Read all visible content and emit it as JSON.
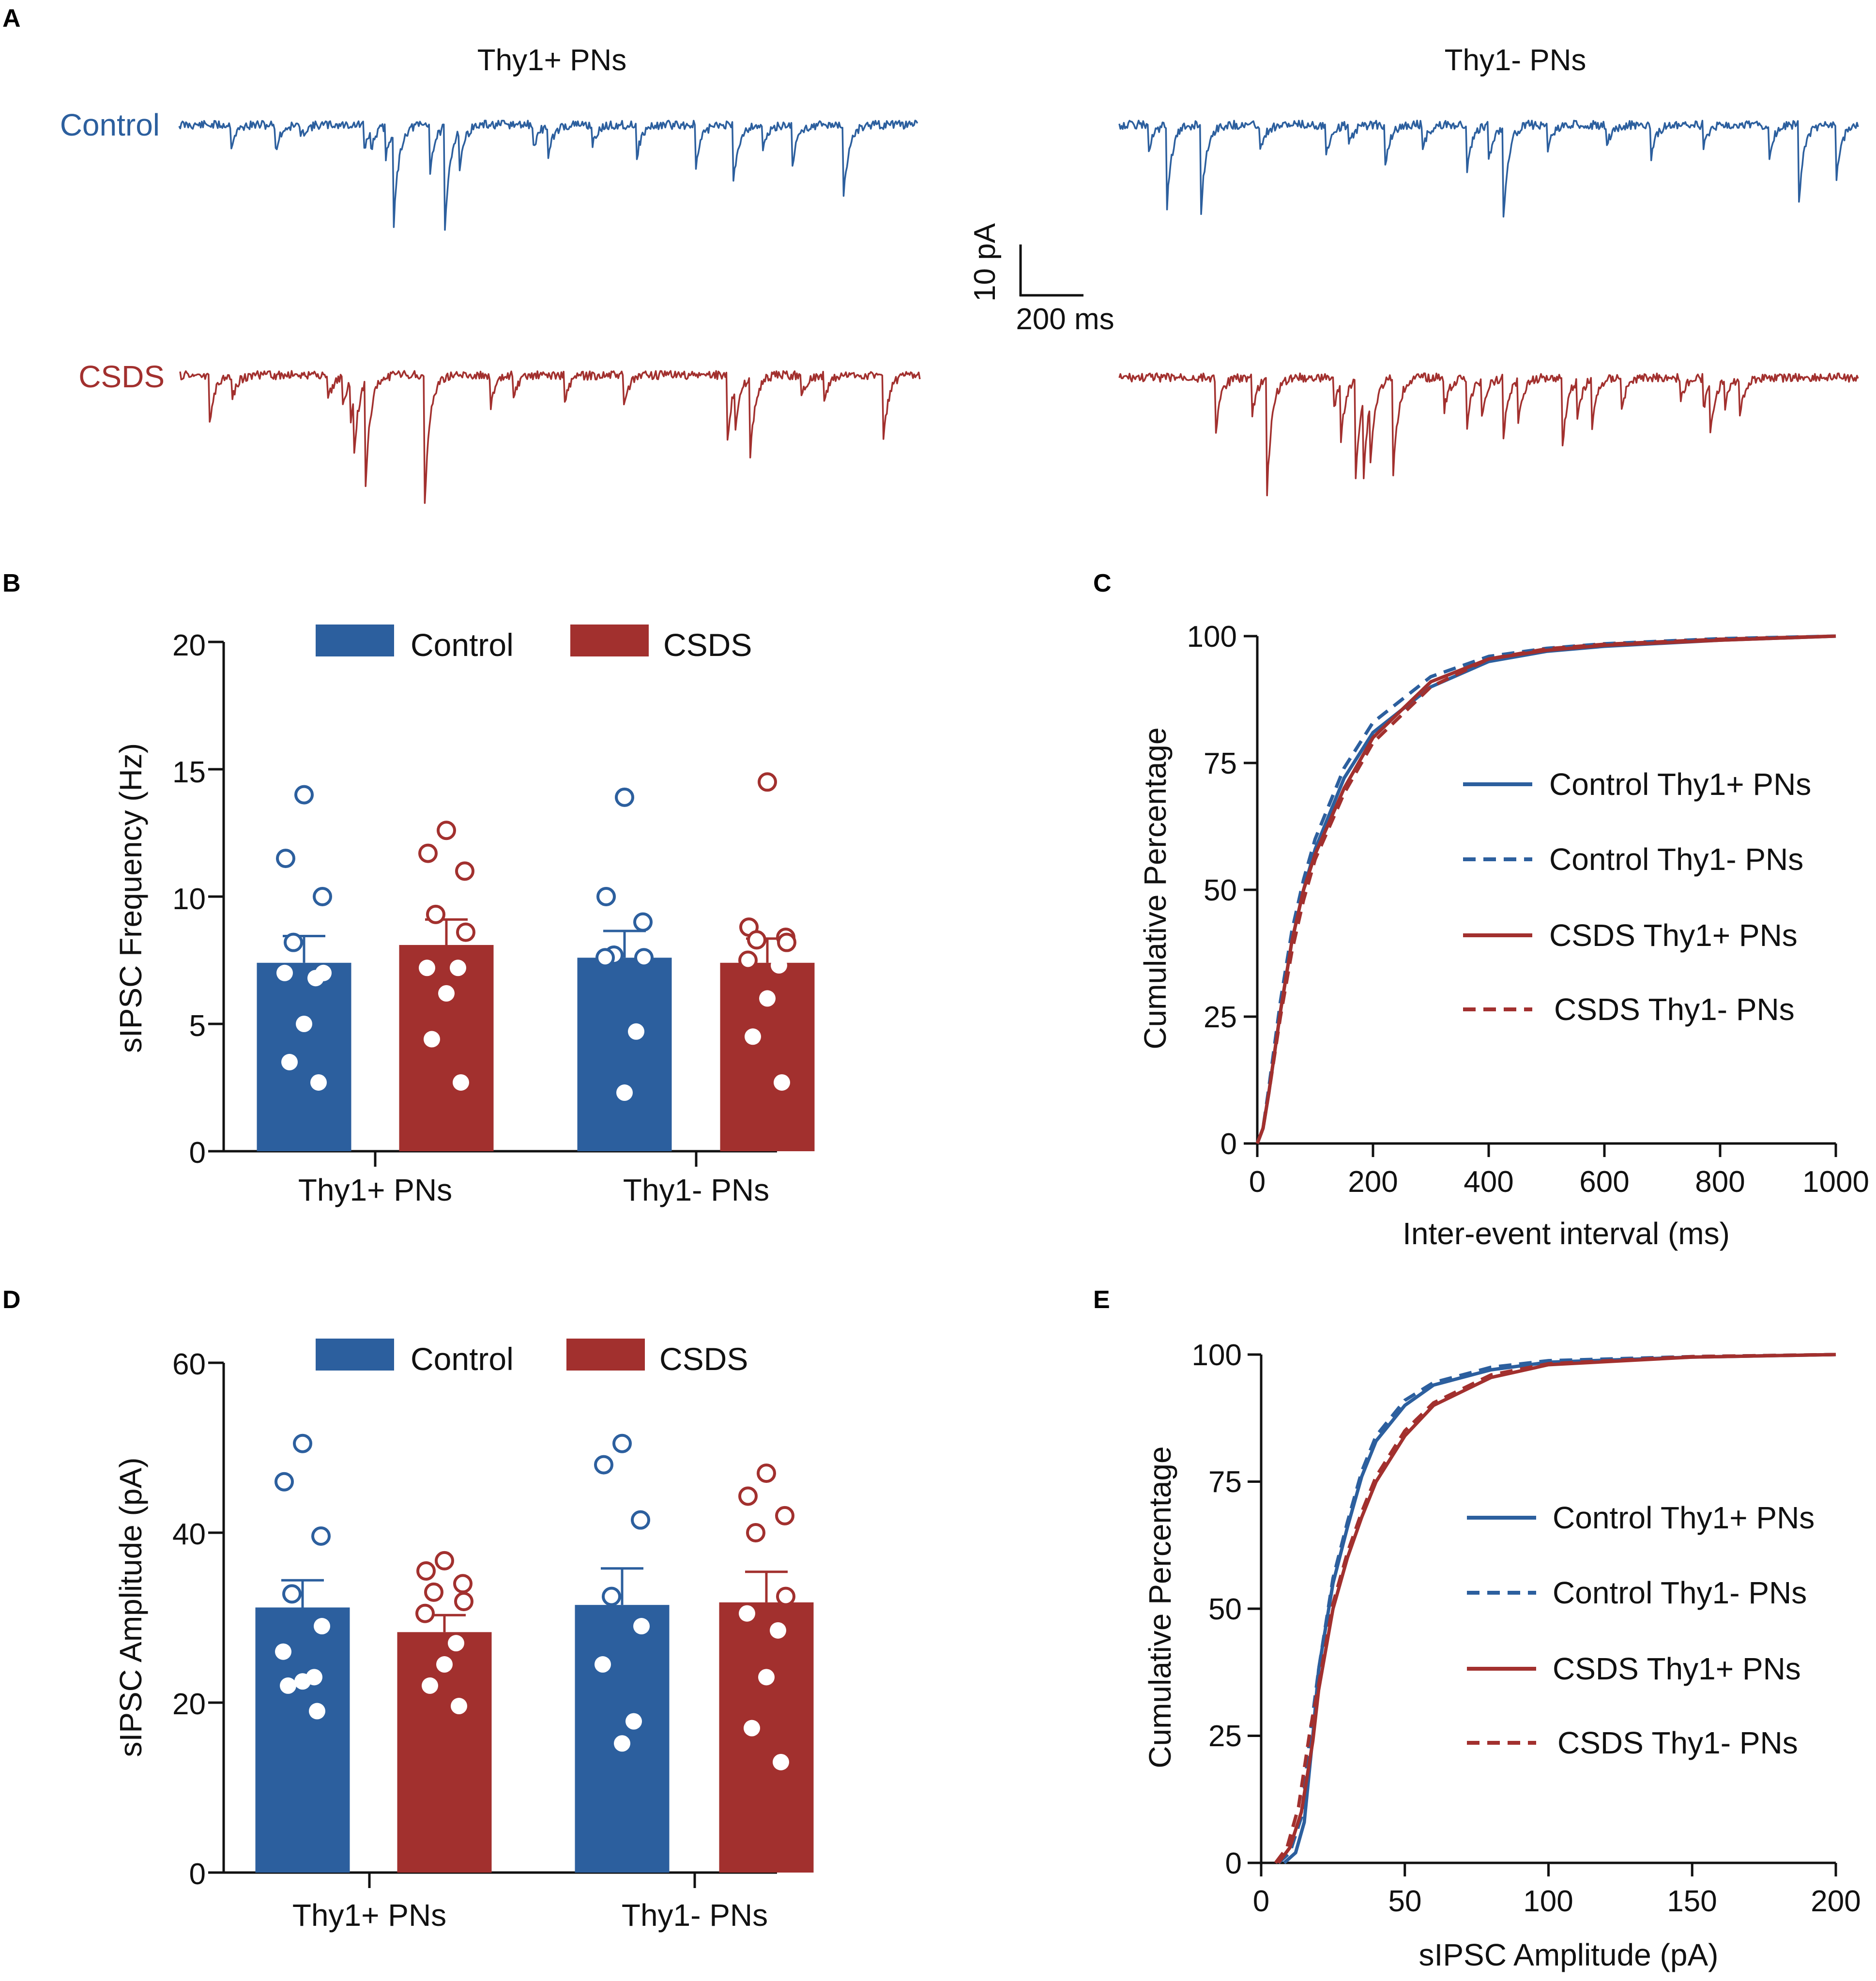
{
  "colors": {
    "control": "#2c5f9e",
    "csds": "#a2302e",
    "axis": "#111111"
  },
  "panel_a": {
    "letter": "A",
    "title_left": "Thy1+ PNs",
    "title_right": "Thy1- PNs",
    "label_control": "Control",
    "label_csds": "CSDS",
    "scale_y": "10 pA",
    "scale_x": "200 ms",
    "traces": {
      "control_left": [
        [
          0.07,
          8
        ],
        [
          0.13,
          10
        ],
        [
          0.165,
          5
        ],
        [
          0.25,
          10
        ],
        [
          0.26,
          7
        ],
        [
          0.28,
          12
        ],
        [
          0.29,
          35
        ],
        [
          0.34,
          17
        ],
        [
          0.36,
          40
        ],
        [
          0.38,
          14
        ],
        [
          0.48,
          9
        ],
        [
          0.5,
          12
        ],
        [
          0.56,
          8
        ],
        [
          0.62,
          12
        ],
        [
          0.7,
          16
        ],
        [
          0.75,
          22
        ],
        [
          0.79,
          10
        ],
        [
          0.83,
          15
        ],
        [
          0.9,
          28
        ]
      ],
      "control_right": [
        [
          0.04,
          10
        ],
        [
          0.065,
          30
        ],
        [
          0.11,
          32
        ],
        [
          0.19,
          10
        ],
        [
          0.28,
          12
        ],
        [
          0.31,
          8
        ],
        [
          0.36,
          16
        ],
        [
          0.41,
          9
        ],
        [
          0.47,
          18
        ],
        [
          0.5,
          14
        ],
        [
          0.52,
          34
        ],
        [
          0.58,
          10
        ],
        [
          0.66,
          8
        ],
        [
          0.72,
          12
        ],
        [
          0.79,
          9
        ],
        [
          0.88,
          12
        ],
        [
          0.92,
          28
        ],
        [
          0.97,
          20
        ]
      ],
      "csds_left": [
        [
          0.04,
          18
        ],
        [
          0.07,
          9
        ],
        [
          0.2,
          10
        ],
        [
          0.22,
          12
        ],
        [
          0.23,
          15
        ],
        [
          0.235,
          20
        ],
        [
          0.25,
          38
        ],
        [
          0.33,
          48
        ],
        [
          0.42,
          12
        ],
        [
          0.45,
          9
        ],
        [
          0.52,
          10
        ],
        [
          0.6,
          12
        ],
        [
          0.74,
          24
        ],
        [
          0.75,
          16
        ],
        [
          0.77,
          30
        ],
        [
          0.84,
          8
        ],
        [
          0.87,
          10
        ],
        [
          0.95,
          25
        ]
      ],
      "csds_right": [
        [
          0.13,
          20
        ],
        [
          0.18,
          14
        ],
        [
          0.2,
          42
        ],
        [
          0.29,
          12
        ],
        [
          0.3,
          20
        ],
        [
          0.32,
          36
        ],
        [
          0.33,
          30
        ],
        [
          0.34,
          22
        ],
        [
          0.37,
          37
        ],
        [
          0.44,
          12
        ],
        [
          0.47,
          18
        ],
        [
          0.49,
          14
        ],
        [
          0.52,
          22
        ],
        [
          0.54,
          16
        ],
        [
          0.6,
          26
        ],
        [
          0.62,
          14
        ],
        [
          0.64,
          18
        ],
        [
          0.68,
          12
        ],
        [
          0.76,
          8
        ],
        [
          0.79,
          12
        ],
        [
          0.8,
          18
        ],
        [
          0.82,
          10
        ],
        [
          0.84,
          14
        ]
      ]
    }
  },
  "panel_b": {
    "letter": "B",
    "chart_type": "bar",
    "ylabel": "sIPSC Frequency (Hz)",
    "yticks": [
      "0",
      "5",
      "10",
      "15",
      "20"
    ],
    "ylim": [
      0,
      20
    ],
    "categories": [
      "Thy1+ PNs",
      "Thy1- PNs"
    ],
    "legend": [
      "Control",
      "CSDS"
    ],
    "series": [
      {
        "name": "Control",
        "means": [
          7.4,
          7.6
        ],
        "sem": [
          1.05,
          1.05
        ],
        "points": [
          [
            14.0,
            11.5,
            10.0,
            8.2,
            7.0,
            7.0,
            6.8,
            5.0,
            3.5,
            2.7
          ],
          [
            13.9,
            10.0,
            9.0,
            7.7,
            7.6,
            7.6,
            4.7,
            2.3
          ]
        ]
      },
      {
        "name": "CSDS",
        "means": [
          8.1,
          7.4
        ],
        "sem": [
          1.0,
          0.95
        ],
        "points": [
          [
            12.6,
            11.7,
            11.0,
            9.3,
            8.6,
            7.2,
            7.2,
            6.2,
            4.4,
            2.7
          ],
          [
            14.5,
            8.8,
            8.4,
            8.3,
            8.2,
            7.5,
            7.3,
            6.0,
            4.5,
            2.7
          ]
        ]
      }
    ]
  },
  "panel_c": {
    "letter": "C",
    "chart_type": "line",
    "xlabel": "Inter-event interval (ms)",
    "ylabel": "Cumulative Percentage",
    "xticks": [
      "0",
      "200",
      "400",
      "600",
      "800",
      "1000"
    ],
    "yticks": [
      "0",
      "25",
      "50",
      "75",
      "100"
    ],
    "xlim": [
      0,
      1000
    ],
    "ylim": [
      0,
      100
    ],
    "legend": [
      "Control Thy1+ PNs",
      "Control Thy1- PNs",
      "CSDS Thy1+ PNs",
      "CSDS Thy1- PNs"
    ],
    "series": [
      {
        "name": "Control Thy1+ PNs",
        "x": [
          0,
          10,
          20,
          40,
          60,
          80,
          100,
          150,
          200,
          300,
          400,
          500,
          600,
          800,
          1000
        ],
        "y": [
          0,
          3,
          10,
          26,
          40,
          50,
          58,
          72,
          81,
          90,
          95,
          97,
          98,
          99.2,
          100
        ]
      },
      {
        "name": "Control Thy1- PNs",
        "x": [
          0,
          10,
          20,
          40,
          60,
          80,
          100,
          150,
          200,
          300,
          400,
          500,
          600,
          800,
          1000
        ],
        "y": [
          0,
          3,
          11,
          28,
          42,
          52,
          60,
          74,
          83,
          92,
          96,
          97.6,
          98.5,
          99.5,
          100
        ]
      },
      {
        "name": "CSDS Thy1+ PNs",
        "x": [
          0,
          10,
          20,
          40,
          60,
          80,
          100,
          150,
          200,
          300,
          400,
          500,
          600,
          800,
          1000
        ],
        "y": [
          0,
          3,
          10,
          26,
          40,
          50,
          57,
          70,
          80,
          91,
          95.5,
          97.2,
          98.2,
          99.2,
          100
        ]
      },
      {
        "name": "CSDS Thy1- PNs",
        "x": [
          0,
          10,
          20,
          40,
          60,
          80,
          100,
          150,
          200,
          300,
          400,
          500,
          600,
          800,
          1000
        ],
        "y": [
          0,
          3,
          10,
          25,
          38,
          48,
          56,
          69,
          79,
          90,
          95.5,
          97.5,
          98.4,
          99.4,
          100
        ]
      }
    ]
  },
  "panel_d": {
    "letter": "D",
    "chart_type": "bar",
    "ylabel": "sIPSC Amplitude (pA)",
    "yticks": [
      "0",
      "20",
      "40",
      "60"
    ],
    "ylim": [
      0,
      60
    ],
    "categories": [
      "Thy1+ PNs",
      "Thy1- PNs"
    ],
    "legend": [
      "Control",
      "CSDS"
    ],
    "series": [
      {
        "name": "Control",
        "means": [
          31.2,
          31.5
        ],
        "sem": [
          3.2,
          4.3
        ],
        "points": [
          [
            50.5,
            46.0,
            39.6,
            32.8,
            29.0,
            26.0,
            23.0,
            22.5,
            22.0,
            19.0
          ],
          [
            50.5,
            48.0,
            41.5,
            32.5,
            29.0,
            24.5,
            17.8,
            15.2
          ]
        ]
      },
      {
        "name": "CSDS",
        "means": [
          28.3,
          31.8
        ],
        "sem": [
          2.0,
          3.6
        ],
        "points": [
          [
            36.7,
            35.5,
            34.0,
            33.0,
            31.9,
            30.5,
            27.0,
            24.5,
            22.0,
            19.6
          ],
          [
            47.0,
            44.3,
            42.0,
            40.0,
            32.5,
            30.5,
            28.5,
            23.0,
            17.0,
            13.0
          ]
        ]
      }
    ]
  },
  "panel_e": {
    "letter": "E",
    "chart_type": "line",
    "xlabel": "sIPSC Amplitude (pA)",
    "ylabel": "Cumulative Percentage",
    "xticks": [
      "0",
      "50",
      "100",
      "150",
      "200"
    ],
    "yticks": [
      "0",
      "25",
      "50",
      "75",
      "100"
    ],
    "xlim": [
      0,
      200
    ],
    "ylim": [
      0,
      100
    ],
    "legend": [
      "Control Thy1+ PNs",
      "Control Thy1- PNs",
      "CSDS Thy1+ PNs",
      "CSDS Thy1- PNs"
    ],
    "series": [
      {
        "name": "Control Thy1+ PNs",
        "x": [
          8,
          12,
          15,
          18,
          20,
          25,
          30,
          35,
          40,
          50,
          60,
          80,
          100,
          150,
          200
        ],
        "y": [
          0,
          2,
          8,
          25,
          38,
          55,
          66,
          76,
          83,
          90,
          94,
          97,
          98.5,
          99.5,
          100
        ]
      },
      {
        "name": "Control Thy1- PNs",
        "x": [
          6,
          10,
          14,
          17,
          20,
          25,
          30,
          35,
          40,
          50,
          60,
          80,
          100,
          150,
          200
        ],
        "y": [
          0,
          2,
          9,
          25,
          38,
          56,
          67,
          77,
          84,
          91,
          94.5,
          97.5,
          98.8,
          99.6,
          100
        ]
      },
      {
        "name": "CSDS Thy1+ PNs",
        "x": [
          6,
          10,
          14,
          18,
          20,
          25,
          30,
          35,
          40,
          50,
          60,
          80,
          100,
          150,
          200
        ],
        "y": [
          0,
          3,
          10,
          24,
          34,
          50,
          60,
          68,
          75,
          84,
          90,
          95.5,
          98,
          99.5,
          100
        ]
      },
      {
        "name": "CSDS Thy1- PNs",
        "x": [
          5,
          9,
          13,
          17,
          20,
          25,
          30,
          35,
          40,
          50,
          60,
          80,
          100,
          150,
          200
        ],
        "y": [
          0,
          3,
          11,
          26,
          35,
          51,
          61,
          69,
          76,
          85,
          90.5,
          96,
          98.2,
          99.6,
          100
        ]
      }
    ]
  }
}
